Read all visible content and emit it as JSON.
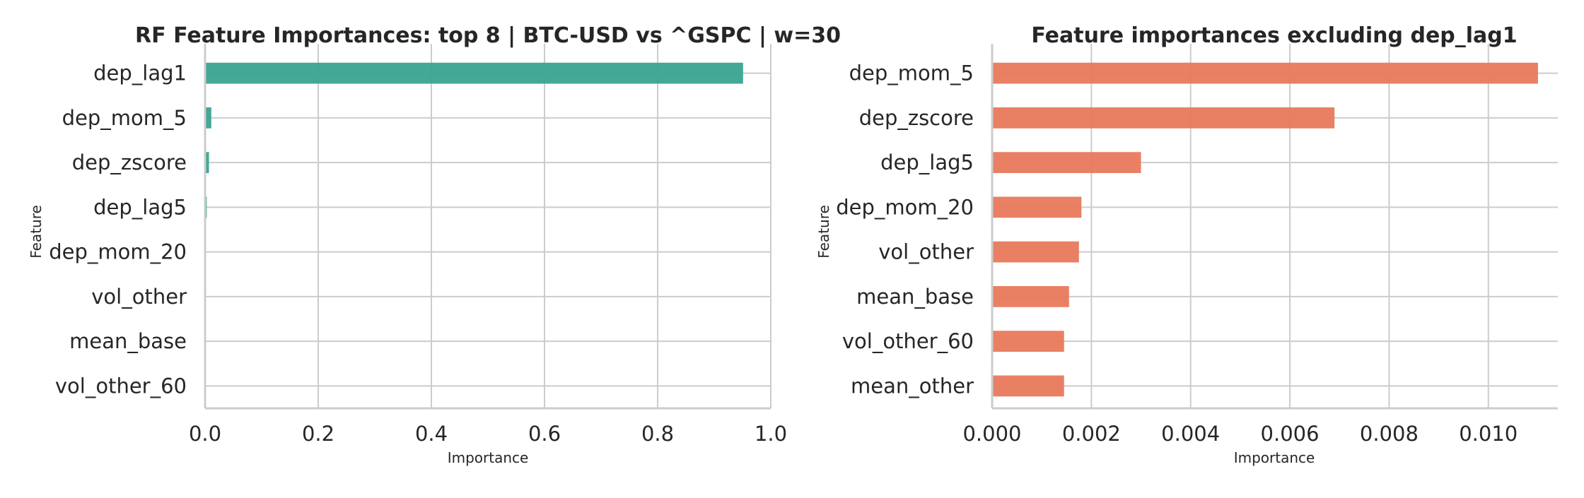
{
  "figure": {
    "background": "#ffffff",
    "grid_color": "#cccccc"
  },
  "chart_data": [
    {
      "type": "bar",
      "orientation": "horizontal",
      "title": "RF Feature Importances: top 8 | BTC-USD vs ^GSPC | w=30",
      "xlabel": "Importance",
      "ylabel": "Feature",
      "categories": [
        "dep_lag1",
        "dep_mom_5",
        "dep_zscore",
        "dep_lag5",
        "dep_mom_20",
        "vol_other",
        "mean_base",
        "vol_other_60"
      ],
      "values": [
        0.951,
        0.011,
        0.0069,
        0.003,
        0.0018,
        0.00175,
        0.00155,
        0.00145
      ],
      "xlim": [
        0,
        1.0
      ],
      "xticks": [
        0.0,
        0.2,
        0.4,
        0.6,
        0.8,
        1.0
      ],
      "xtick_labels": [
        "0.0",
        "0.2",
        "0.4",
        "0.6",
        "0.8",
        "1.0"
      ],
      "color": "#3aa391",
      "grid": true,
      "legend": "none"
    },
    {
      "type": "bar",
      "orientation": "horizontal",
      "title": "Feature importances excluding dep_lag1",
      "xlabel": "Importance",
      "ylabel": "Feature",
      "categories": [
        "dep_mom_5",
        "dep_zscore",
        "dep_lag5",
        "dep_mom_20",
        "vol_other",
        "mean_base",
        "vol_other_60",
        "mean_other"
      ],
      "values": [
        0.011,
        0.0069,
        0.003,
        0.0018,
        0.00175,
        0.00155,
        0.00145,
        0.00145
      ],
      "xlim": [
        0,
        0.0114
      ],
      "xticks": [
        0.0,
        0.002,
        0.004,
        0.006,
        0.008,
        0.01
      ],
      "xtick_labels": [
        "0.000",
        "0.002",
        "0.004",
        "0.006",
        "0.008",
        "0.010"
      ],
      "color": "#e8795b",
      "grid": true,
      "legend": "none"
    }
  ]
}
